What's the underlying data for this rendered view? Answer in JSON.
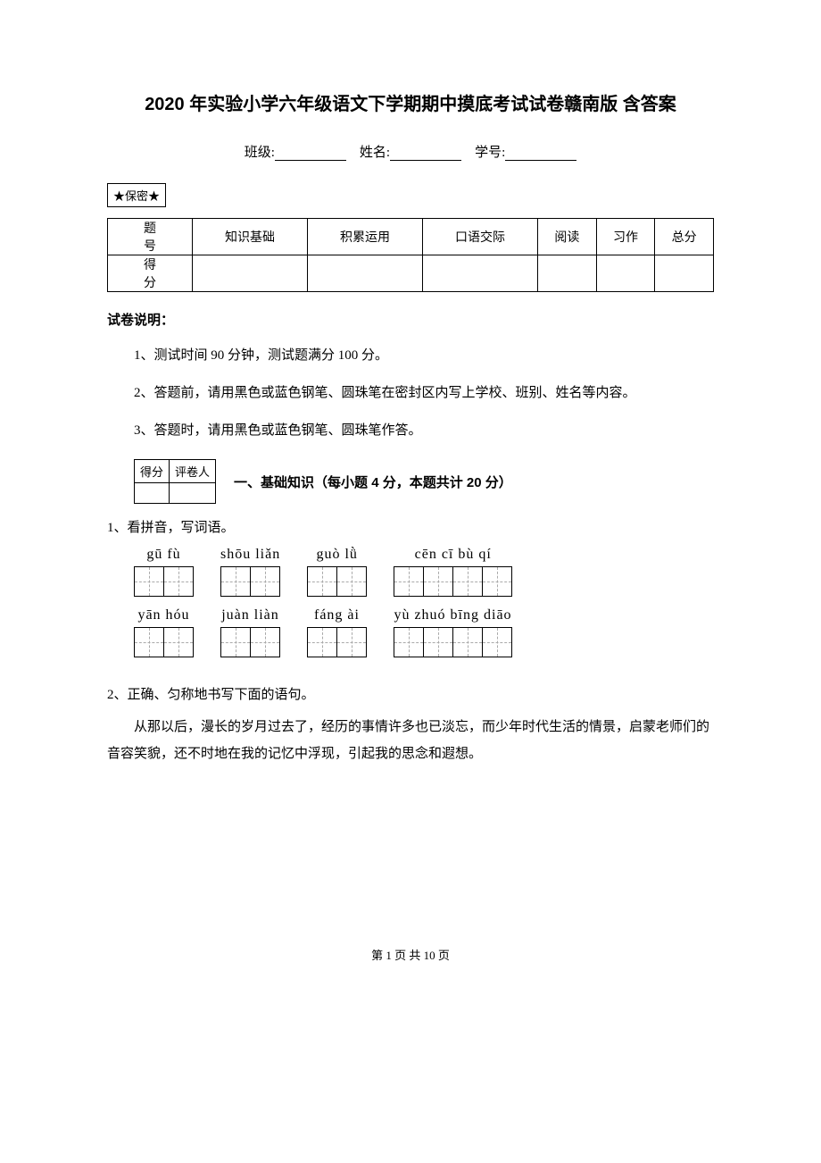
{
  "title": "2020 年实验小学六年级语文下学期期中摸底考试试卷赣南版 含答案",
  "info": {
    "class_label": "班级:",
    "name_label": "姓名:",
    "id_label": "学号:"
  },
  "confidential": "★保密★",
  "score_table": {
    "headers": [
      "题　号",
      "知识基础",
      "积累运用",
      "口语交际",
      "阅读",
      "习作",
      "总分"
    ],
    "row2_label": "得　分"
  },
  "section_label": "试卷说明：",
  "instructions": [
    "1、测试时间 90 分钟，测试题满分 100 分。",
    "2、答题前，请用黑色或蓝色钢笔、圆珠笔在密封区内写上学校、班别、姓名等内容。",
    "3、答题时，请用黑色或蓝色钢笔、圆珠笔作答。"
  ],
  "grade_box": {
    "c1": "得分",
    "c2": "评卷人"
  },
  "section1_title": "一、基础知识（每小题 4 分，本题共计 20 分）",
  "q1": "1、看拼音，写词语。",
  "pinyin_rows": [
    [
      {
        "text": "gū  fù",
        "boxes": 2
      },
      {
        "text": "shōu liǎn",
        "boxes": 2
      },
      {
        "text": "guò  lǜ",
        "boxes": 2
      },
      {
        "text": "cēn  cī  bù  qí",
        "boxes": 4
      }
    ],
    [
      {
        "text": "yān  hóu",
        "boxes": 2
      },
      {
        "text": "juàn liàn",
        "boxes": 2
      },
      {
        "text": "fáng  ài",
        "boxes": 2
      },
      {
        "text": "yù  zhuó bīng diāo",
        "boxes": 4
      }
    ]
  ],
  "q2": "2、正确、匀称地书写下面的语句。",
  "q2_para": "从那以后，漫长的岁月过去了，经历的事情许多也已淡忘，而少年时代生活的情景，启蒙老师们的音容笑貌，还不时地在我的记忆中浮现，引起我的思念和遐想。",
  "footer": "第 1 页 共 10 页",
  "colors": {
    "text": "#000000",
    "background": "#ffffff",
    "dash": "#aaaaaa"
  }
}
